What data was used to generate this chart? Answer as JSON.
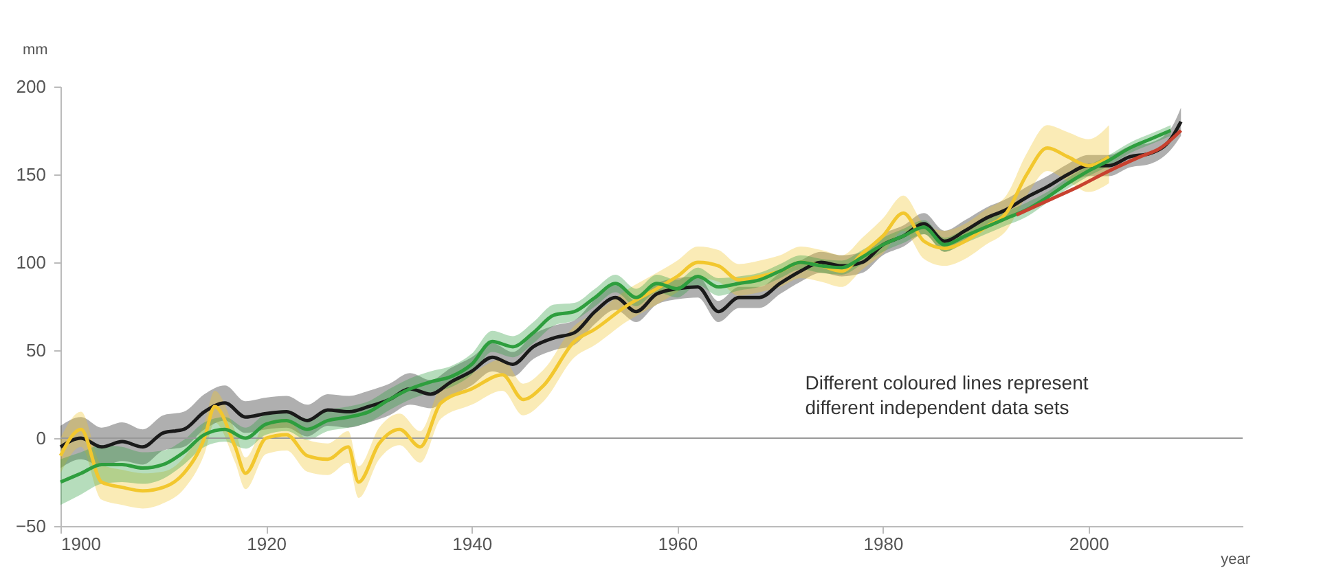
{
  "chart_data": {
    "type": "line",
    "xlabel": "year",
    "ylabel": "mm",
    "xlim": [
      1900,
      2015
    ],
    "xticks": [
      1900,
      1920,
      1940,
      1960,
      1980,
      2000
    ],
    "ylim": [
      -50,
      200
    ],
    "yticks": [
      -50,
      0,
      50,
      100,
      150,
      200
    ],
    "grid": false,
    "marker": "none",
    "line_style": "solid",
    "annotations": [
      "Different coloured lines represent different independent data sets"
    ],
    "ref_lines": [
      {
        "axis": "y",
        "value": 0,
        "color": "#999999"
      }
    ],
    "series": [
      {
        "color": "#1a1a1a",
        "x": [
          1900,
          1902,
          1904,
          1906,
          1908,
          1910,
          1912,
          1914,
          1916,
          1918,
          1920,
          1922,
          1924,
          1926,
          1928,
          1930,
          1932,
          1934,
          1936,
          1938,
          1940,
          1942,
          1944,
          1946,
          1948,
          1950,
          1952,
          1954,
          1956,
          1958,
          1960,
          1962,
          1964,
          1966,
          1968,
          1970,
          1972,
          1974,
          1976,
          1978,
          1980,
          1982,
          1984,
          1986,
          1988,
          1990,
          1992,
          1994,
          1996,
          1998,
          2000,
          2002,
          2004,
          2006,
          2008,
          2009
        ],
        "values": [
          -5,
          0,
          -5,
          -2,
          -5,
          3,
          5,
          15,
          20,
          12,
          14,
          15,
          10,
          16,
          15,
          18,
          22,
          28,
          25,
          32,
          38,
          46,
          42,
          52,
          57,
          60,
          72,
          80,
          72,
          82,
          85,
          86,
          72,
          80,
          80,
          88,
          95,
          100,
          98,
          100,
          110,
          115,
          122,
          112,
          118,
          125,
          130,
          137,
          143,
          150,
          155,
          155,
          160,
          162,
          170,
          180
        ],
        "lower": [
          -17,
          -12,
          -16,
          -13,
          -15,
          -7,
          -5,
          5,
          10,
          3,
          5,
          6,
          1,
          7,
          6,
          9,
          13,
          19,
          17,
          24,
          30,
          38,
          35,
          45,
          50,
          53,
          65,
          73,
          66,
          76,
          79,
          80,
          66,
          74,
          74,
          82,
          89,
          94,
          92,
          94,
          104,
          109,
          116,
          106,
          112,
          119,
          124,
          131,
          137,
          144,
          149,
          149,
          154,
          156,
          164,
          172
        ],
        "upper": [
          7,
          12,
          6,
          9,
          5,
          13,
          15,
          25,
          30,
          21,
          23,
          24,
          19,
          25,
          24,
          27,
          31,
          37,
          33,
          40,
          46,
          54,
          49,
          59,
          64,
          67,
          79,
          87,
          78,
          88,
          91,
          92,
          78,
          86,
          86,
          94,
          101,
          106,
          104,
          106,
          116,
          121,
          128,
          118,
          124,
          131,
          136,
          143,
          149,
          156,
          161,
          161,
          166,
          168,
          176,
          188
        ]
      },
      {
        "color": "#f2c72e",
        "x": [
          1900,
          1902,
          1904,
          1906,
          1908,
          1910,
          1912,
          1914,
          1915,
          1917,
          1918,
          1920,
          1922,
          1924,
          1926,
          1928,
          1929,
          1931,
          1933,
          1935,
          1937,
          1940,
          1943,
          1945,
          1947,
          1950,
          1952,
          1955,
          1958,
          1960,
          1962,
          1964,
          1966,
          1968,
          1970,
          1972,
          1974,
          1976,
          1978,
          1980,
          1982,
          1984,
          1986,
          1988,
          1990,
          1992,
          1994,
          1996,
          1998,
          2000,
          2002
        ],
        "values": [
          -10,
          5,
          -25,
          -28,
          -30,
          -28,
          -20,
          0,
          18,
          -5,
          -20,
          0,
          2,
          -10,
          -12,
          -5,
          -25,
          -3,
          5,
          -5,
          20,
          28,
          36,
          22,
          30,
          55,
          62,
          75,
          85,
          92,
          100,
          98,
          90,
          92,
          95,
          100,
          98,
          95,
          105,
          115,
          128,
          112,
          108,
          112,
          120,
          128,
          150,
          165,
          160,
          155,
          160
        ],
        "lower": [
          -20,
          -5,
          -35,
          -38,
          -40,
          -37,
          -29,
          -9,
          9,
          -14,
          -29,
          -9,
          -7,
          -19,
          -21,
          -14,
          -34,
          -12,
          -4,
          -14,
          11,
          19,
          27,
          13,
          21,
          46,
          53,
          66,
          76,
          83,
          91,
          89,
          81,
          83,
          86,
          91,
          89,
          86,
          96,
          105,
          118,
          102,
          98,
          102,
          110,
          118,
          138,
          152,
          146,
          140,
          145
        ],
        "upper": [
          0,
          15,
          -15,
          -18,
          -20,
          -19,
          -11,
          9,
          27,
          4,
          -11,
          9,
          11,
          -1,
          -3,
          4,
          -16,
          6,
          14,
          4,
          29,
          37,
          45,
          31,
          39,
          64,
          71,
          84,
          94,
          101,
          109,
          107,
          99,
          101,
          104,
          109,
          107,
          104,
          114,
          125,
          138,
          122,
          118,
          122,
          130,
          138,
          162,
          178,
          174,
          170,
          178
        ]
      },
      {
        "color": "#2e9e3e",
        "x": [
          1900,
          1902,
          1904,
          1906,
          1908,
          1910,
          1912,
          1914,
          1916,
          1918,
          1920,
          1922,
          1924,
          1926,
          1928,
          1930,
          1932,
          1934,
          1936,
          1938,
          1940,
          1942,
          1944,
          1946,
          1948,
          1950,
          1952,
          1954,
          1956,
          1958,
          1960,
          1962,
          1964,
          1966,
          1968,
          1970,
          1972,
          1974,
          1976,
          1978,
          1980,
          1982,
          1984,
          1986,
          1988,
          1990,
          1992,
          1994,
          1996,
          1998,
          2000,
          2002,
          2004,
          2006,
          2008
        ],
        "values": [
          -25,
          -20,
          -15,
          -15,
          -17,
          -15,
          -8,
          2,
          5,
          0,
          8,
          10,
          5,
          10,
          12,
          15,
          22,
          28,
          32,
          35,
          42,
          55,
          52,
          60,
          70,
          72,
          80,
          88,
          80,
          88,
          85,
          92,
          86,
          88,
          90,
          95,
          100,
          98,
          97,
          103,
          110,
          115,
          120,
          110,
          115,
          120,
          125,
          130,
          137,
          145,
          152,
          158,
          165,
          170,
          175
        ],
        "lower": [
          -38,
          -32,
          -26,
          -25,
          -26,
          -23,
          -15,
          -5,
          -2,
          -6,
          2,
          4,
          -1,
          4,
          6,
          9,
          16,
          22,
          26,
          29,
          36,
          49,
          46,
          54,
          64,
          67,
          75,
          83,
          75,
          83,
          80,
          87,
          81,
          84,
          86,
          91,
          96,
          94,
          93,
          99,
          106,
          111,
          116,
          106,
          111,
          116,
          121,
          126,
          134,
          142,
          149,
          155,
          162,
          167,
          172
        ],
        "upper": [
          -12,
          -8,
          -4,
          -5,
          -8,
          -7,
          -1,
          9,
          12,
          6,
          14,
          16,
          11,
          16,
          18,
          21,
          28,
          34,
          38,
          41,
          48,
          61,
          58,
          66,
          76,
          77,
          85,
          93,
          85,
          93,
          90,
          97,
          91,
          92,
          94,
          99,
          104,
          102,
          101,
          107,
          114,
          119,
          124,
          114,
          119,
          124,
          129,
          134,
          140,
          148,
          155,
          161,
          168,
          173,
          178
        ]
      },
      {
        "color": "#c8412f",
        "x": [
          1993,
          1996,
          1999,
          2002,
          2005,
          2007,
          2009
        ],
        "values": [
          127,
          135,
          143,
          152,
          160,
          165,
          175
        ]
      }
    ]
  }
}
